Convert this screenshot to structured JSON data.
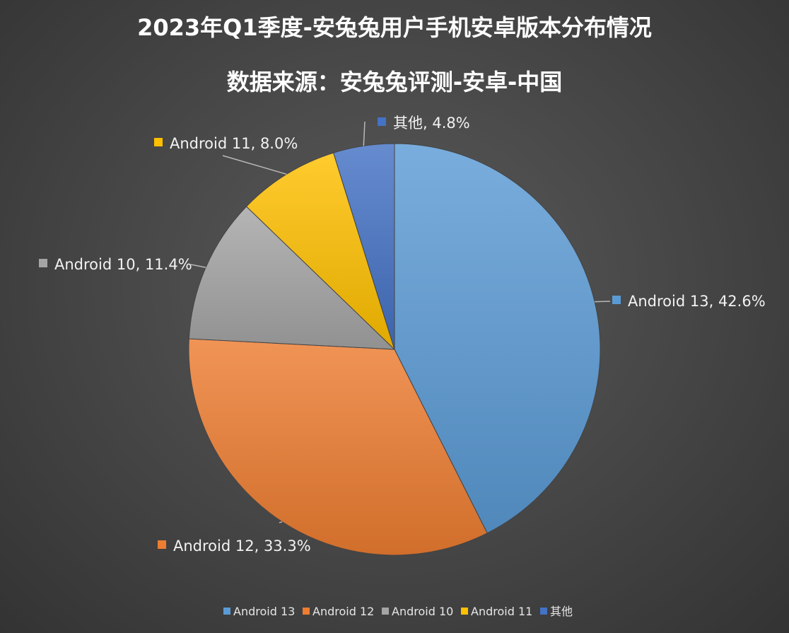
{
  "chart_data": {
    "type": "pie",
    "title": "2023年Q1季度-安兔兔用户手机安卓版本分布情况",
    "subtitle": "数据来源：安兔兔评测-安卓-中国",
    "legend_position": "bottom",
    "slices": [
      {
        "name": "Android 13",
        "value": 42.6,
        "label": "Android 13, 42.6%",
        "color": "#5b9bd5"
      },
      {
        "name": "Android 12",
        "value": 33.3,
        "label": "Android 12, 33.3%",
        "color": "#ed7d31"
      },
      {
        "name": "Android 10",
        "value": 11.4,
        "label": "Android 10, 11.4%",
        "color": "#a5a5a5"
      },
      {
        "name": "Android 11",
        "value": 8.0,
        "label": "Android 11, 8.0%",
        "color": "#ffc000"
      },
      {
        "name": "其他",
        "value": 4.8,
        "label": "其他, 4.8%",
        "color": "#4472c4"
      }
    ]
  }
}
